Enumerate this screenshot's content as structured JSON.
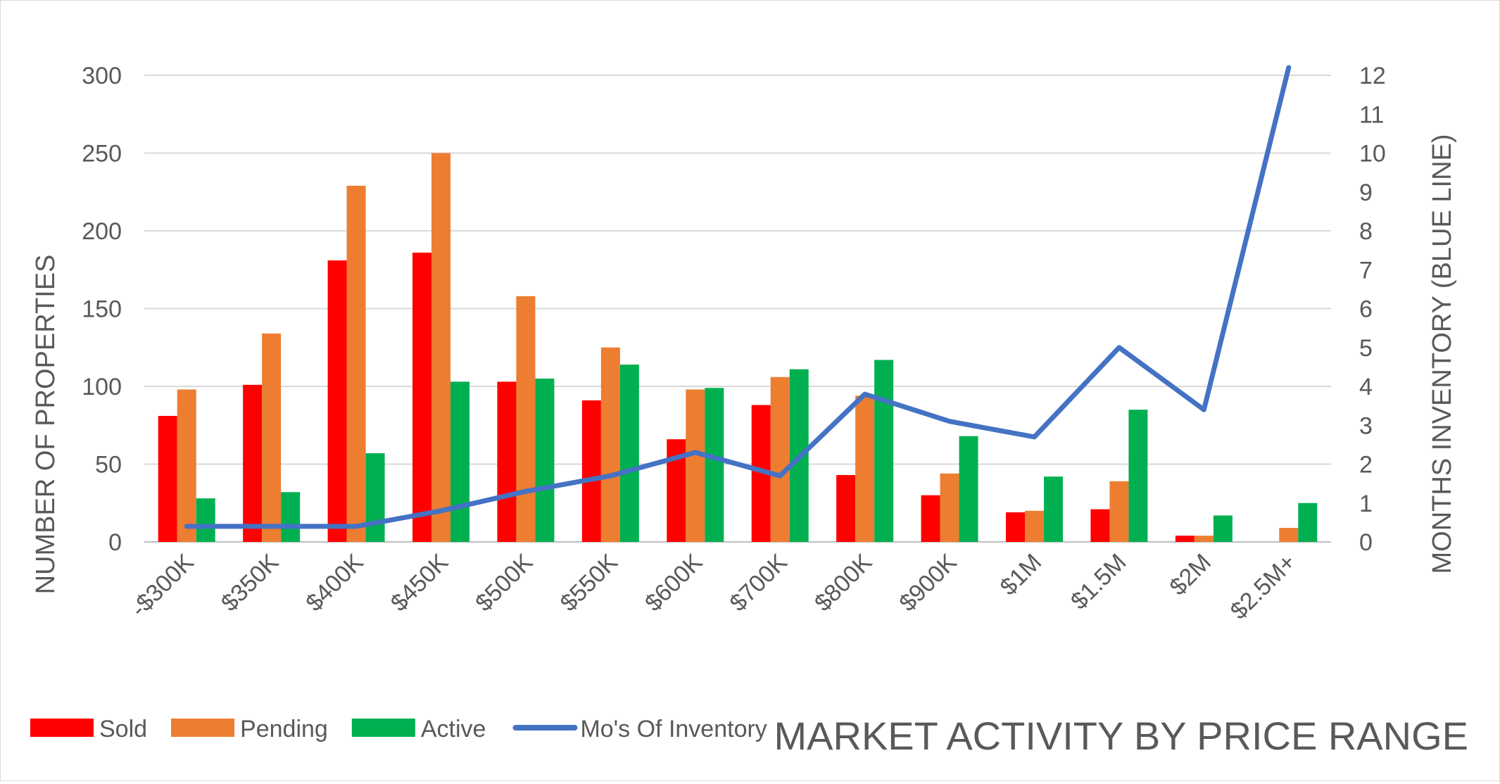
{
  "chart_data": {
    "type": "bar",
    "title": "MARKET ACTIVITY BY PRICE RANGE",
    "xlabel": "",
    "ylabel": "NUMBER OF PROPERTIES",
    "y2label": "MONTHS INVENTORY (BLUE LINE)",
    "ylim": [
      0,
      300
    ],
    "y2lim": [
      0,
      12
    ],
    "yticks": [
      "0",
      "50",
      "100",
      "150",
      "200",
      "250",
      "300"
    ],
    "y2ticks": [
      "0",
      "1",
      "2",
      "3",
      "4",
      "5",
      "6",
      "7",
      "8",
      "9",
      "10",
      "11",
      "12"
    ],
    "grid": true,
    "legend_position": "bottom-left",
    "categories": [
      "-$300K",
      "$350K",
      "$400K",
      "$450K",
      "$500K",
      "$550K",
      "$600K",
      "$700K",
      "$800K",
      "$900K",
      "$1M",
      "$1.5M",
      "$2M",
      "$2.5M+"
    ],
    "series": [
      {
        "name": "Sold",
        "type": "bar",
        "color": "#ff0000",
        "values": [
          81,
          101,
          181,
          186,
          103,
          91,
          66,
          88,
          43,
          30,
          19,
          21,
          4,
          0
        ]
      },
      {
        "name": "Pending",
        "type": "bar",
        "color": "#ed7d31",
        "values": [
          98,
          134,
          229,
          250,
          158,
          125,
          98,
          106,
          94,
          44,
          20,
          39,
          4,
          9
        ]
      },
      {
        "name": "Active",
        "type": "bar",
        "color": "#00b050",
        "values": [
          28,
          32,
          57,
          103,
          105,
          114,
          99,
          111,
          117,
          68,
          42,
          85,
          17,
          25
        ]
      },
      {
        "name": "Mo's Of Inventory",
        "type": "line",
        "axis": "right",
        "color": "#4472c4",
        "values": [
          0.4,
          0.4,
          0.4,
          0.8,
          1.3,
          1.7,
          2.3,
          1.7,
          3.8,
          3.1,
          2.7,
          5.0,
          3.4,
          12.2
        ]
      }
    ]
  }
}
